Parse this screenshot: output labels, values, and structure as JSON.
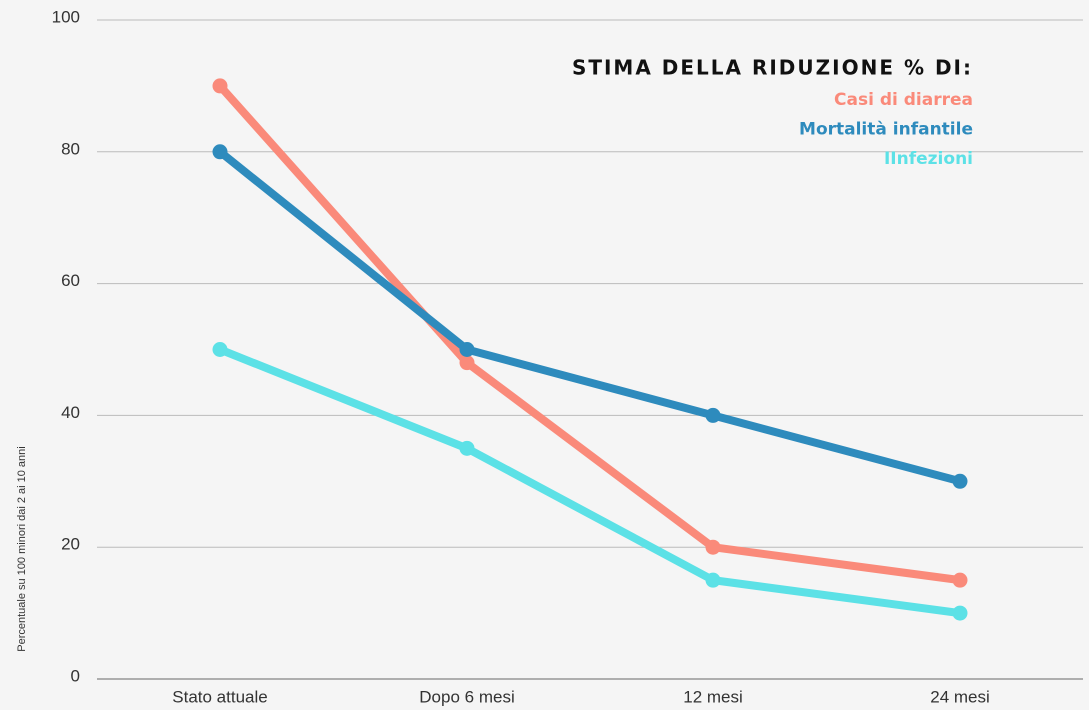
{
  "chart_data": {
    "type": "line",
    "legend_title": "STIMA DELLA RIDUZIONE % DI:",
    "y_label": "Percentuale su 100 minori dai 2 ai 10  anni",
    "categories": [
      "Stato attuale",
      "Dopo 6 mesi",
      "12 mesi",
      "24 mesi"
    ],
    "series": [
      {
        "name": "Casi di diarrea",
        "color": "#fa8a7a",
        "values": [
          90,
          48,
          20,
          15
        ]
      },
      {
        "name": "Mortalità infantile",
        "color": "#2e8bbd",
        "values": [
          80,
          50,
          40,
          30
        ]
      },
      {
        "name": "IInfezioni",
        "color": "#5ce1e6",
        "values": [
          50,
          35,
          15,
          10
        ]
      }
    ],
    "ylim": [
      0,
      100
    ],
    "yticks": [
      0,
      20,
      40,
      60,
      80,
      100
    ],
    "grid": true,
    "legend": "upper right"
  }
}
